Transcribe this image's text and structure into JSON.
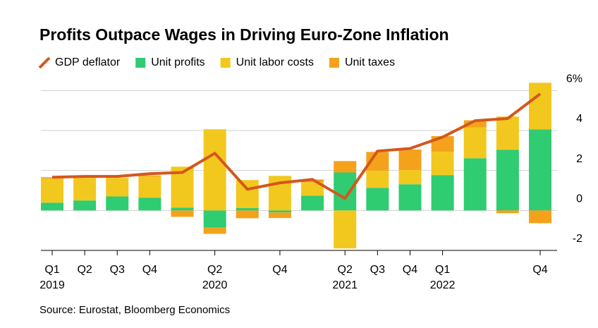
{
  "chart_data": {
    "type": "stacked_bar_line",
    "title": "Profits Outpace Wages in Driving Euro-Zone Inflation",
    "source": "Source: Eurostat, Bloomberg Economics",
    "categories": [
      "Q1",
      "Q2",
      "Q3",
      "Q4",
      null,
      "Q2",
      null,
      "Q4",
      null,
      "Q2",
      "Q3",
      "Q4",
      "Q1",
      null,
      null,
      "Q4"
    ],
    "year_labels": [
      "2019",
      null,
      null,
      null,
      null,
      "2020",
      null,
      null,
      null,
      "2021",
      null,
      null,
      "2022",
      null,
      null,
      null
    ],
    "series": [
      {
        "name": "GDP deflator",
        "color": "#d4571c",
        "kind": "line",
        "values": [
          1.66,
          1.7,
          1.7,
          1.84,
          1.9,
          2.86,
          1.06,
          1.38,
          1.55,
          0.6,
          2.97,
          3.1,
          3.67,
          4.49,
          4.6,
          5.83
        ]
      },
      {
        "name": "Unit profits",
        "color": "#2fcc72",
        "kind": "bar",
        "values": [
          0.39,
          0.5,
          0.7,
          0.64,
          0.14,
          -0.85,
          0.12,
          -0.1,
          0.74,
          1.9,
          1.13,
          1.31,
          1.77,
          2.61,
          3.04,
          4.06
        ]
      },
      {
        "name": "Unit labor costs",
        "color": "#f2c81e",
        "kind": "bar",
        "values": [
          1.2,
          1.13,
          0.93,
          1.06,
          2.05,
          4.06,
          1.4,
          1.73,
          0.67,
          -1.9,
          0.85,
          0.71,
          1.17,
          1.55,
          1.66,
          2.33
        ]
      },
      {
        "name": "Unit taxes",
        "color": "#f4a21c",
        "kind": "bar",
        "values": [
          0.07,
          0,
          0,
          0.05,
          -0.32,
          -0.32,
          -0.39,
          -0.28,
          0.14,
          0.57,
          0.95,
          1.03,
          0.78,
          0.35,
          -0.14,
          -0.64
        ]
      }
    ],
    "ylim": [
      -2,
      6.4
    ],
    "yticks": [
      {
        "value": 6,
        "label": "6%"
      },
      4,
      2,
      0,
      -2
    ],
    "grid": true
  }
}
